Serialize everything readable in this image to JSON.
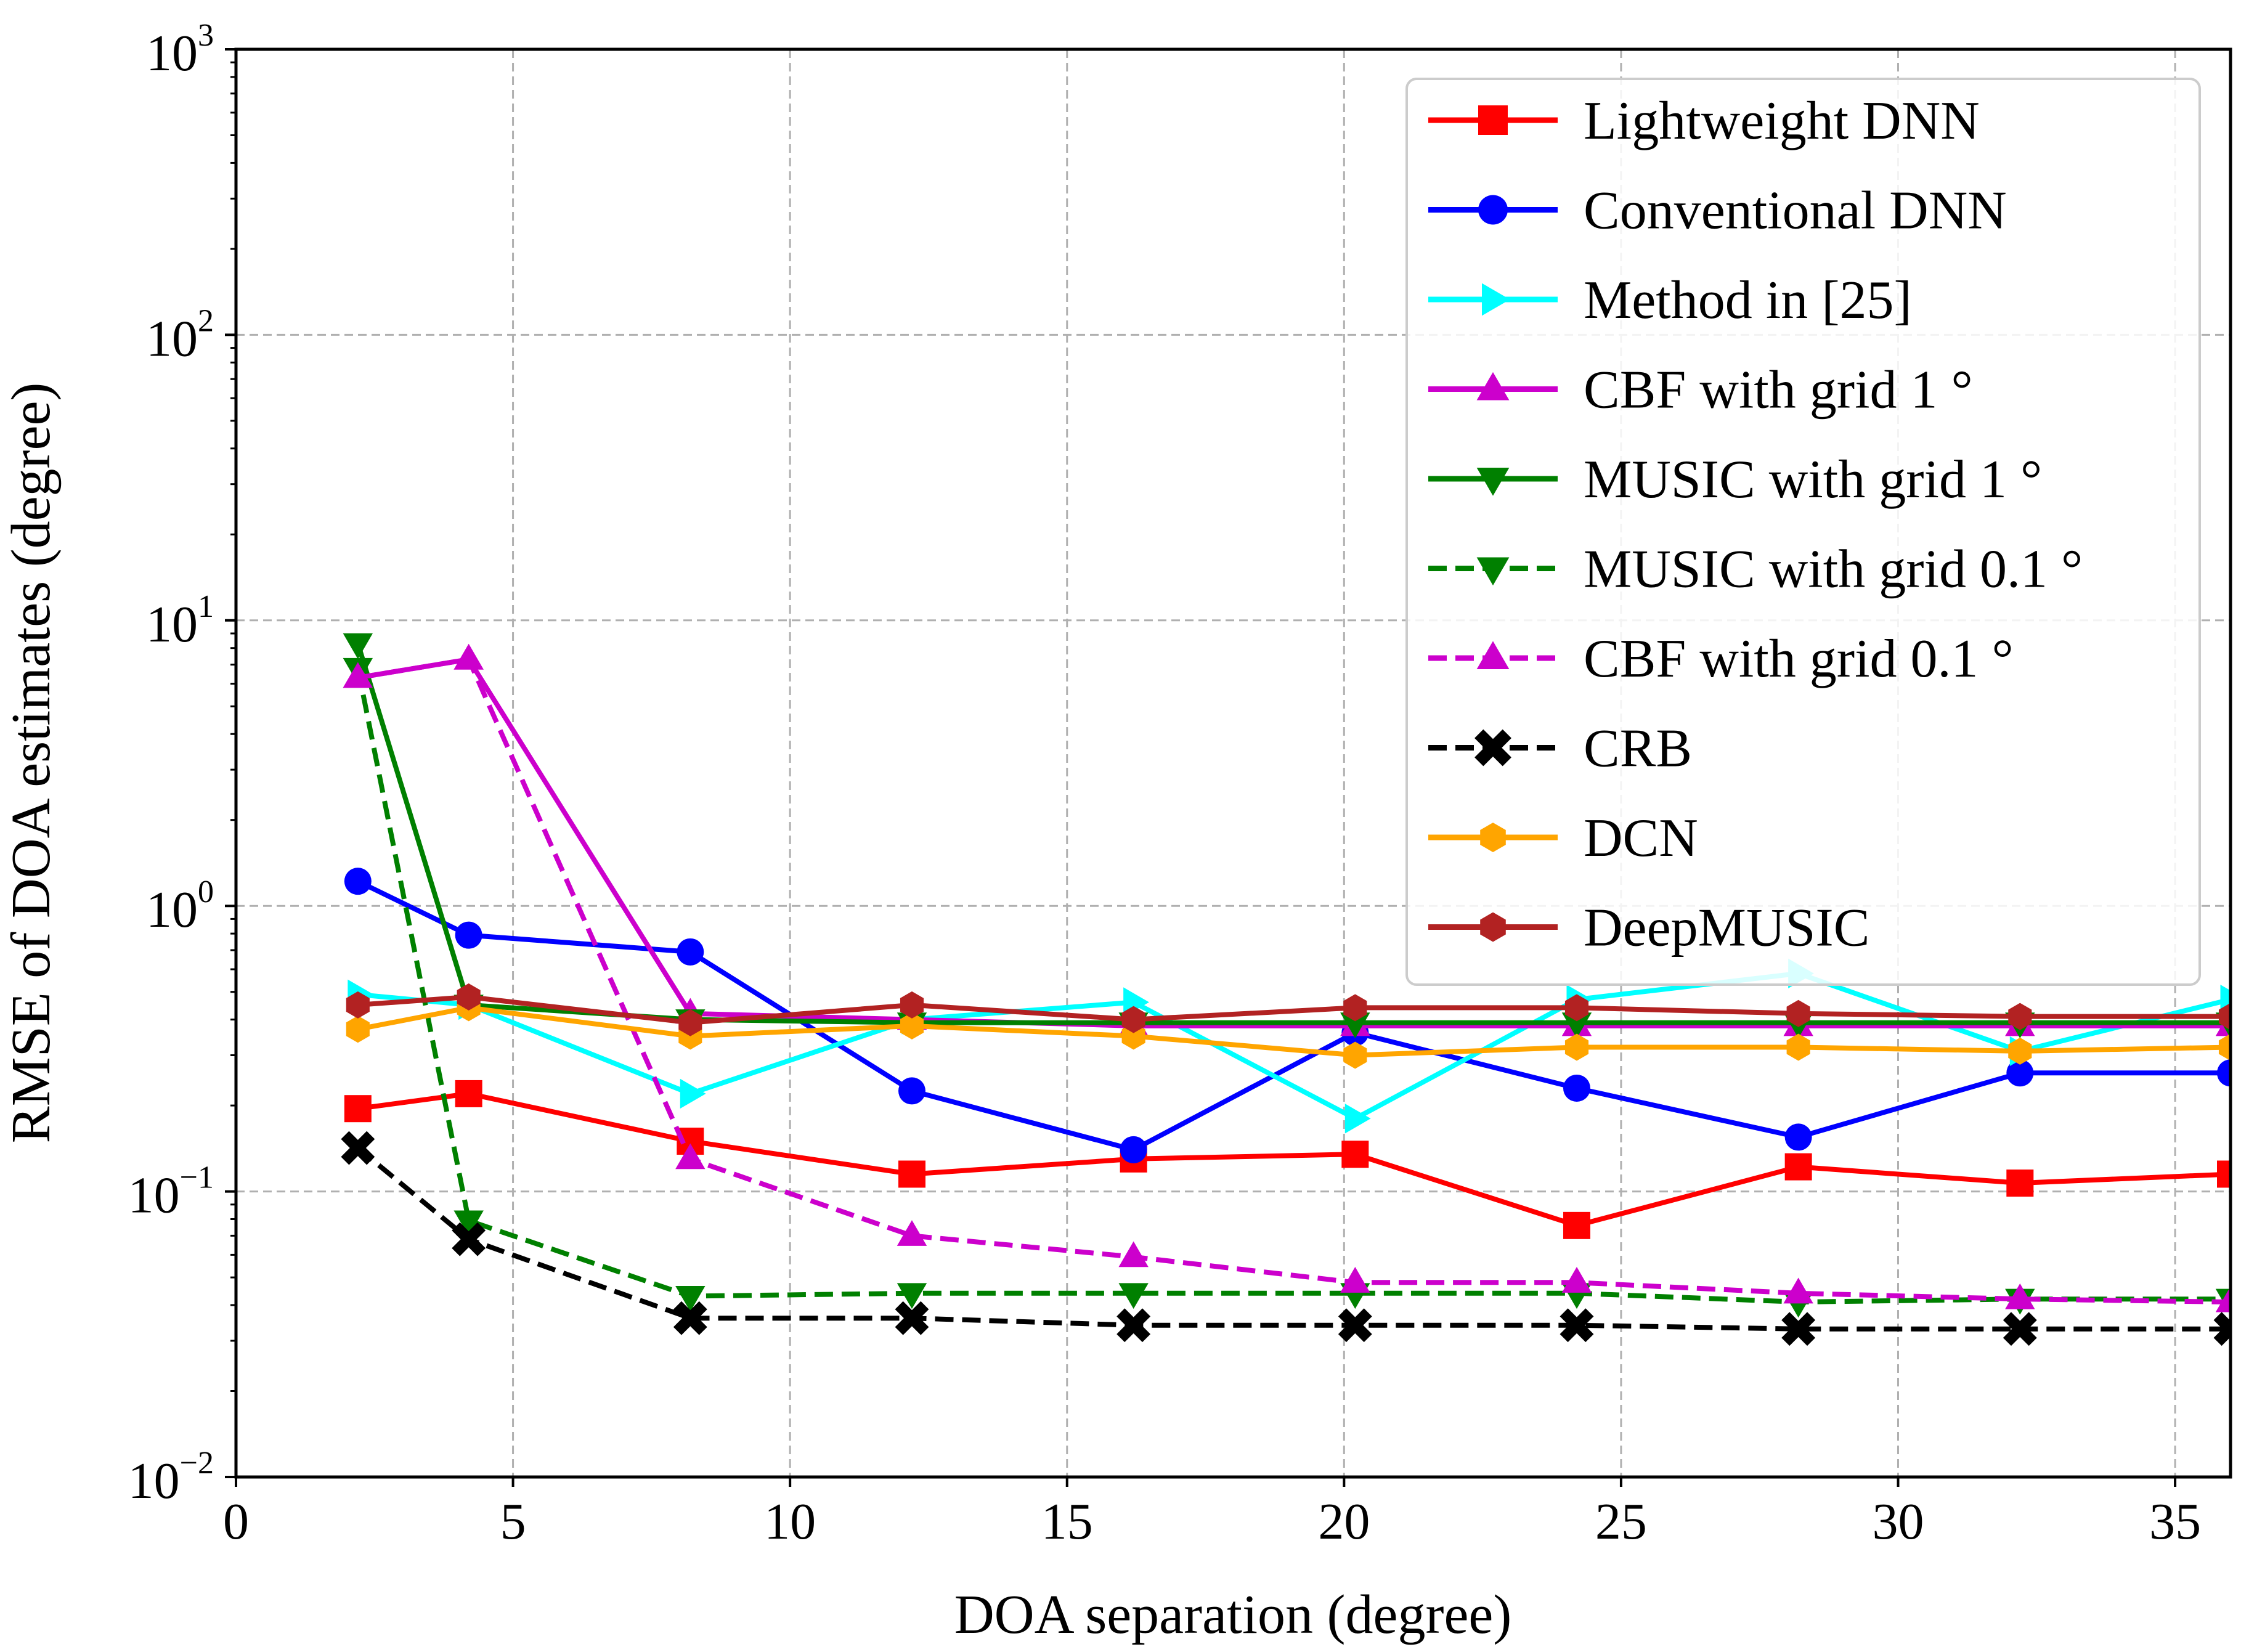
{
  "chart_data": {
    "type": "line",
    "title": "",
    "xlabel": "DOA separation (degree)",
    "ylabel": "RMSE of DOA estimates (degree)",
    "xlim": [
      0,
      36
    ],
    "ylim": [
      0.01,
      1000
    ],
    "yscale": "log",
    "grid": true,
    "legend_position": "top-right",
    "x_ticks": [
      0,
      5,
      10,
      15,
      20,
      25,
      30,
      35
    ],
    "x_tick_labels": [
      "0",
      "5",
      "10",
      "15",
      "20",
      "25",
      "30",
      "35"
    ],
    "y_ticks": [
      {
        "value": 0.01,
        "base": "10",
        "exponent": "−2"
      },
      {
        "value": 0.1,
        "base": "10",
        "exponent": "−1"
      },
      {
        "value": 1,
        "base": "10",
        "exponent": "0"
      },
      {
        "value": 10,
        "base": "10",
        "exponent": "1"
      },
      {
        "value": 100,
        "base": "10",
        "exponent": "2"
      },
      {
        "value": 1000,
        "base": "10",
        "exponent": "3"
      }
    ],
    "series": [
      {
        "name": "Lightweight DNN",
        "color": "#ff0000",
        "marker": "square",
        "dash": "solid",
        "x": [
          2.2,
          4.2,
          8.2,
          12.2,
          16.2,
          20.2,
          24.2,
          28.2,
          32.2,
          36
        ],
        "y": [
          0.195,
          0.22,
          0.15,
          0.115,
          0.13,
          0.135,
          0.076,
          0.122,
          0.107,
          0.115
        ]
      },
      {
        "name": "Conventional DNN",
        "color": "#0000ff",
        "marker": "circle",
        "dash": "solid",
        "x": [
          2.2,
          4.2,
          8.2,
          12.2,
          16.2,
          20.2,
          24.2,
          28.2,
          32.2,
          36
        ],
        "y": [
          1.22,
          0.79,
          0.69,
          0.225,
          0.14,
          0.36,
          0.23,
          0.155,
          0.26,
          0.26
        ]
      },
      {
        "name": "Method in [25]",
        "color": "#00ffff",
        "marker": "triangle-right",
        "dash": "solid",
        "x": [
          2.2,
          4.2,
          8.2,
          12.2,
          16.2,
          20.2,
          24.2,
          28.2,
          32.2,
          36
        ],
        "y": [
          0.49,
          0.45,
          0.22,
          0.4,
          0.46,
          0.18,
          0.47,
          0.58,
          0.31,
          0.47
        ]
      },
      {
        "name": " CBF with grid 1 °",
        "color": "#cc00cc",
        "marker": "triangle-up",
        "dash": "solid",
        "x": [
          2.2,
          4.2,
          8.2,
          12.2,
          16.2,
          20.2,
          24.2,
          28.2,
          32.2,
          36
        ],
        "y": [
          6.3,
          7.3,
          0.42,
          0.4,
          0.38,
          0.38,
          0.38,
          0.38,
          0.38,
          0.38
        ]
      },
      {
        "name": " MUSIC with grid 1 °",
        "color": "#008000",
        "marker": "triangle-down",
        "dash": "solid",
        "x": [
          2.2,
          4.2,
          8.2,
          12.2,
          16.2,
          20.2,
          24.2,
          28.2,
          32.2,
          36
        ],
        "y": [
          8.3,
          0.45,
          0.4,
          0.39,
          0.39,
          0.39,
          0.39,
          0.39,
          0.39,
          0.39
        ]
      },
      {
        "name": " MUSIC with grid 0.1 °",
        "color": "#008000",
        "marker": "triangle-down",
        "dash": "dashed",
        "x": [
          2.2,
          4.2,
          8.2,
          12.2,
          16.2,
          20.2,
          24.2,
          28.2,
          32.2,
          36
        ],
        "y": [
          6.8,
          0.079,
          0.043,
          0.044,
          0.044,
          0.044,
          0.044,
          0.041,
          0.042,
          0.042
        ]
      },
      {
        "name": " CBF with grid 0.1 °",
        "color": "#cc00cc",
        "marker": "triangle-up",
        "dash": "dashed",
        "x": [
          2.2,
          4.2,
          8.2,
          12.2,
          16.2,
          20.2,
          24.2,
          28.2,
          32.2,
          36
        ],
        "y": [
          6.3,
          7.3,
          0.13,
          0.07,
          0.059,
          0.048,
          0.048,
          0.044,
          0.042,
          0.041
        ]
      },
      {
        "name": " CRB",
        "color": "#000000",
        "marker": "x",
        "dash": "dashed",
        "x": [
          2.2,
          4.2,
          8.2,
          12.2,
          16.2,
          20.2,
          24.2,
          28.2,
          32.2,
          36
        ],
        "y": [
          0.142,
          0.068,
          0.036,
          0.036,
          0.034,
          0.034,
          0.034,
          0.033,
          0.033,
          0.033
        ]
      },
      {
        "name": " DCN",
        "color": "#ffa500",
        "marker": "hexagon",
        "dash": "solid",
        "x": [
          2.2,
          4.2,
          8.2,
          12.2,
          16.2,
          20.2,
          24.2,
          28.2,
          32.2,
          36
        ],
        "y": [
          0.37,
          0.44,
          0.35,
          0.38,
          0.35,
          0.3,
          0.32,
          0.32,
          0.31,
          0.32
        ]
      },
      {
        "name": " DeepMUSIC",
        "color": "#b22222",
        "marker": "hexagon",
        "dash": "solid",
        "x": [
          2.2,
          4.2,
          8.2,
          12.2,
          16.2,
          20.2,
          24.2,
          28.2,
          32.2,
          36
        ],
        "y": [
          0.45,
          0.48,
          0.39,
          0.45,
          0.4,
          0.44,
          0.44,
          0.42,
          0.41,
          0.41
        ]
      }
    ]
  }
}
